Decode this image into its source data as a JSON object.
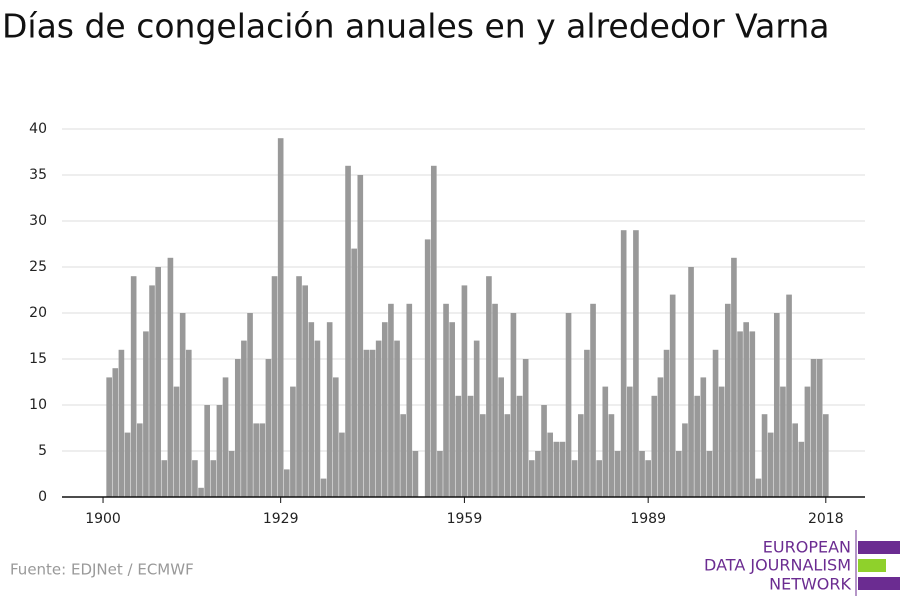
{
  "chart_data": {
    "type": "bar",
    "title": "Días de congelación anuales en y alrededor Varna",
    "source": "Fuente: EDJNet / ECMWF",
    "logo": [
      "EUROPEAN",
      "DATA JOURNALISM",
      "NETWORK"
    ],
    "color": "#999999",
    "x": [
      1901,
      1902,
      1903,
      1904,
      1905,
      1906,
      1907,
      1908,
      1909,
      1910,
      1911,
      1912,
      1913,
      1914,
      1915,
      1916,
      1917,
      1918,
      1919,
      1920,
      1921,
      1922,
      1923,
      1924,
      1925,
      1926,
      1927,
      1928,
      1929,
      1930,
      1931,
      1932,
      1933,
      1934,
      1935,
      1936,
      1937,
      1938,
      1939,
      1940,
      1941,
      1942,
      1943,
      1944,
      1945,
      1946,
      1947,
      1948,
      1949,
      1950,
      1951,
      1952,
      1953,
      1954,
      1955,
      1956,
      1957,
      1958,
      1959,
      1960,
      1961,
      1962,
      1963,
      1964,
      1965,
      1966,
      1967,
      1968,
      1969,
      1970,
      1971,
      1972,
      1973,
      1974,
      1975,
      1976,
      1977,
      1978,
      1979,
      1980,
      1981,
      1982,
      1983,
      1984,
      1985,
      1986,
      1987,
      1988,
      1989,
      1990,
      1991,
      1992,
      1993,
      1994,
      1995,
      1996,
      1997,
      1998,
      1999,
      2000,
      2001,
      2002,
      2003,
      2004,
      2005,
      2006,
      2007,
      2008,
      2009,
      2010,
      2011,
      2012,
      2013,
      2014,
      2015,
      2016,
      2017,
      2018
    ],
    "values": [
      13,
      14,
      16,
      7,
      24,
      8,
      18,
      23,
      25,
      4,
      26,
      12,
      20,
      16,
      4,
      1,
      10,
      4,
      10,
      13,
      5,
      15,
      17,
      20,
      8,
      8,
      15,
      24,
      39,
      3,
      12,
      24,
      23,
      19,
      17,
      2,
      19,
      13,
      7,
      36,
      27,
      35,
      16,
      16,
      17,
      19,
      21,
      17,
      9,
      21,
      5,
      0,
      28,
      36,
      5,
      21,
      19,
      11,
      23,
      11,
      17,
      9,
      24,
      21,
      13,
      9,
      20,
      11,
      15,
      4,
      5,
      10,
      7,
      6,
      6,
      20,
      4,
      9,
      16,
      21,
      4,
      12,
      9,
      5,
      29,
      12,
      29,
      5,
      4,
      11,
      13,
      16,
      22,
      5,
      8,
      25,
      11,
      13,
      5,
      16,
      12,
      21,
      26,
      18,
      19,
      18,
      2,
      9,
      7,
      20,
      12,
      22,
      8,
      6,
      12,
      15,
      15,
      9
    ],
    "xlim": [
      1893.3,
      2024.4
    ],
    "xticks": [
      1900,
      1929,
      1959,
      1989,
      2018
    ],
    "ylim": [
      0,
      40
    ],
    "yticks": [
      0,
      5,
      10,
      15,
      20,
      25,
      30,
      35,
      40
    ],
    "grid": true
  }
}
